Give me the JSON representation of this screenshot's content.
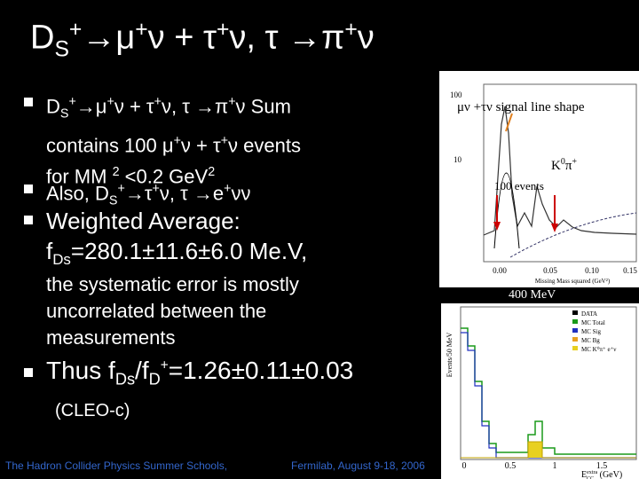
{
  "title": [
    "D",
    "S",
    "+",
    "→μ",
    "+",
    "ν + τ",
    "+",
    "ν, τ →π",
    "+",
    "ν"
  ],
  "bullets": [
    {
      "lines": [
        [
          "D",
          "S",
          "+",
          "→μ",
          "+",
          "ν + τ",
          "+",
          "ν, τ →π",
          "+",
          "ν Sum"
        ],
        [
          "contains 100  μ",
          "+",
          "ν + τ",
          "+",
          "ν events"
        ],
        [
          "for MM ",
          "2",
          " <0.2 GeV",
          "2"
        ]
      ]
    },
    {
      "lines": [
        [
          "Also,  D",
          "S",
          "+",
          "→τ",
          "+",
          "ν, τ →e",
          "+",
          "νν"
        ]
      ]
    },
    {
      "lines": [
        [
          "Weighted Average:"
        ],
        [
          "f",
          "Ds",
          "=280.1±11.6±6.0  Me.V,"
        ]
      ],
      "note": [
        "the systematic error is mostly",
        "uncorrelated between the",
        "measurements"
      ]
    },
    {
      "lines": [
        [
          "Thus  f",
          "Ds",
          "/f",
          "D",
          "+",
          "=1.26±0.11±0.03"
        ]
      ]
    }
  ],
  "source": "(CLEO-c)",
  "footer": [
    "The Hadron Collider Physics Summer Schools,",
    "Fermilab, August 9-18, 2006"
  ],
  "figures": [
    {
      "annotation": "μν +τν signal line shape",
      "peak_label": [
        "K",
        "0",
        "π",
        "+"
      ],
      "count_label": "100 events",
      "yticks": [
        "100",
        "10"
      ],
      "xticks": [
        "0.00",
        "0.05",
        "0.10",
        "0.15"
      ],
      "xlabel": "Missing Mass squared (GeV²)",
      "caption": "400 MeV"
    },
    {
      "ylabel": "Events/50 MeV",
      "legend": [
        "DATA",
        "MC Total",
        "MC Sig",
        "MC Bg",
        "MC K⁰π⁺ e⁺ν"
      ],
      "xticks": [
        "0",
        "0.5",
        "1",
        "1.5"
      ],
      "xlabel": [
        "E",
        "CC",
        "extra",
        " (GeV)"
      ]
    }
  ]
}
